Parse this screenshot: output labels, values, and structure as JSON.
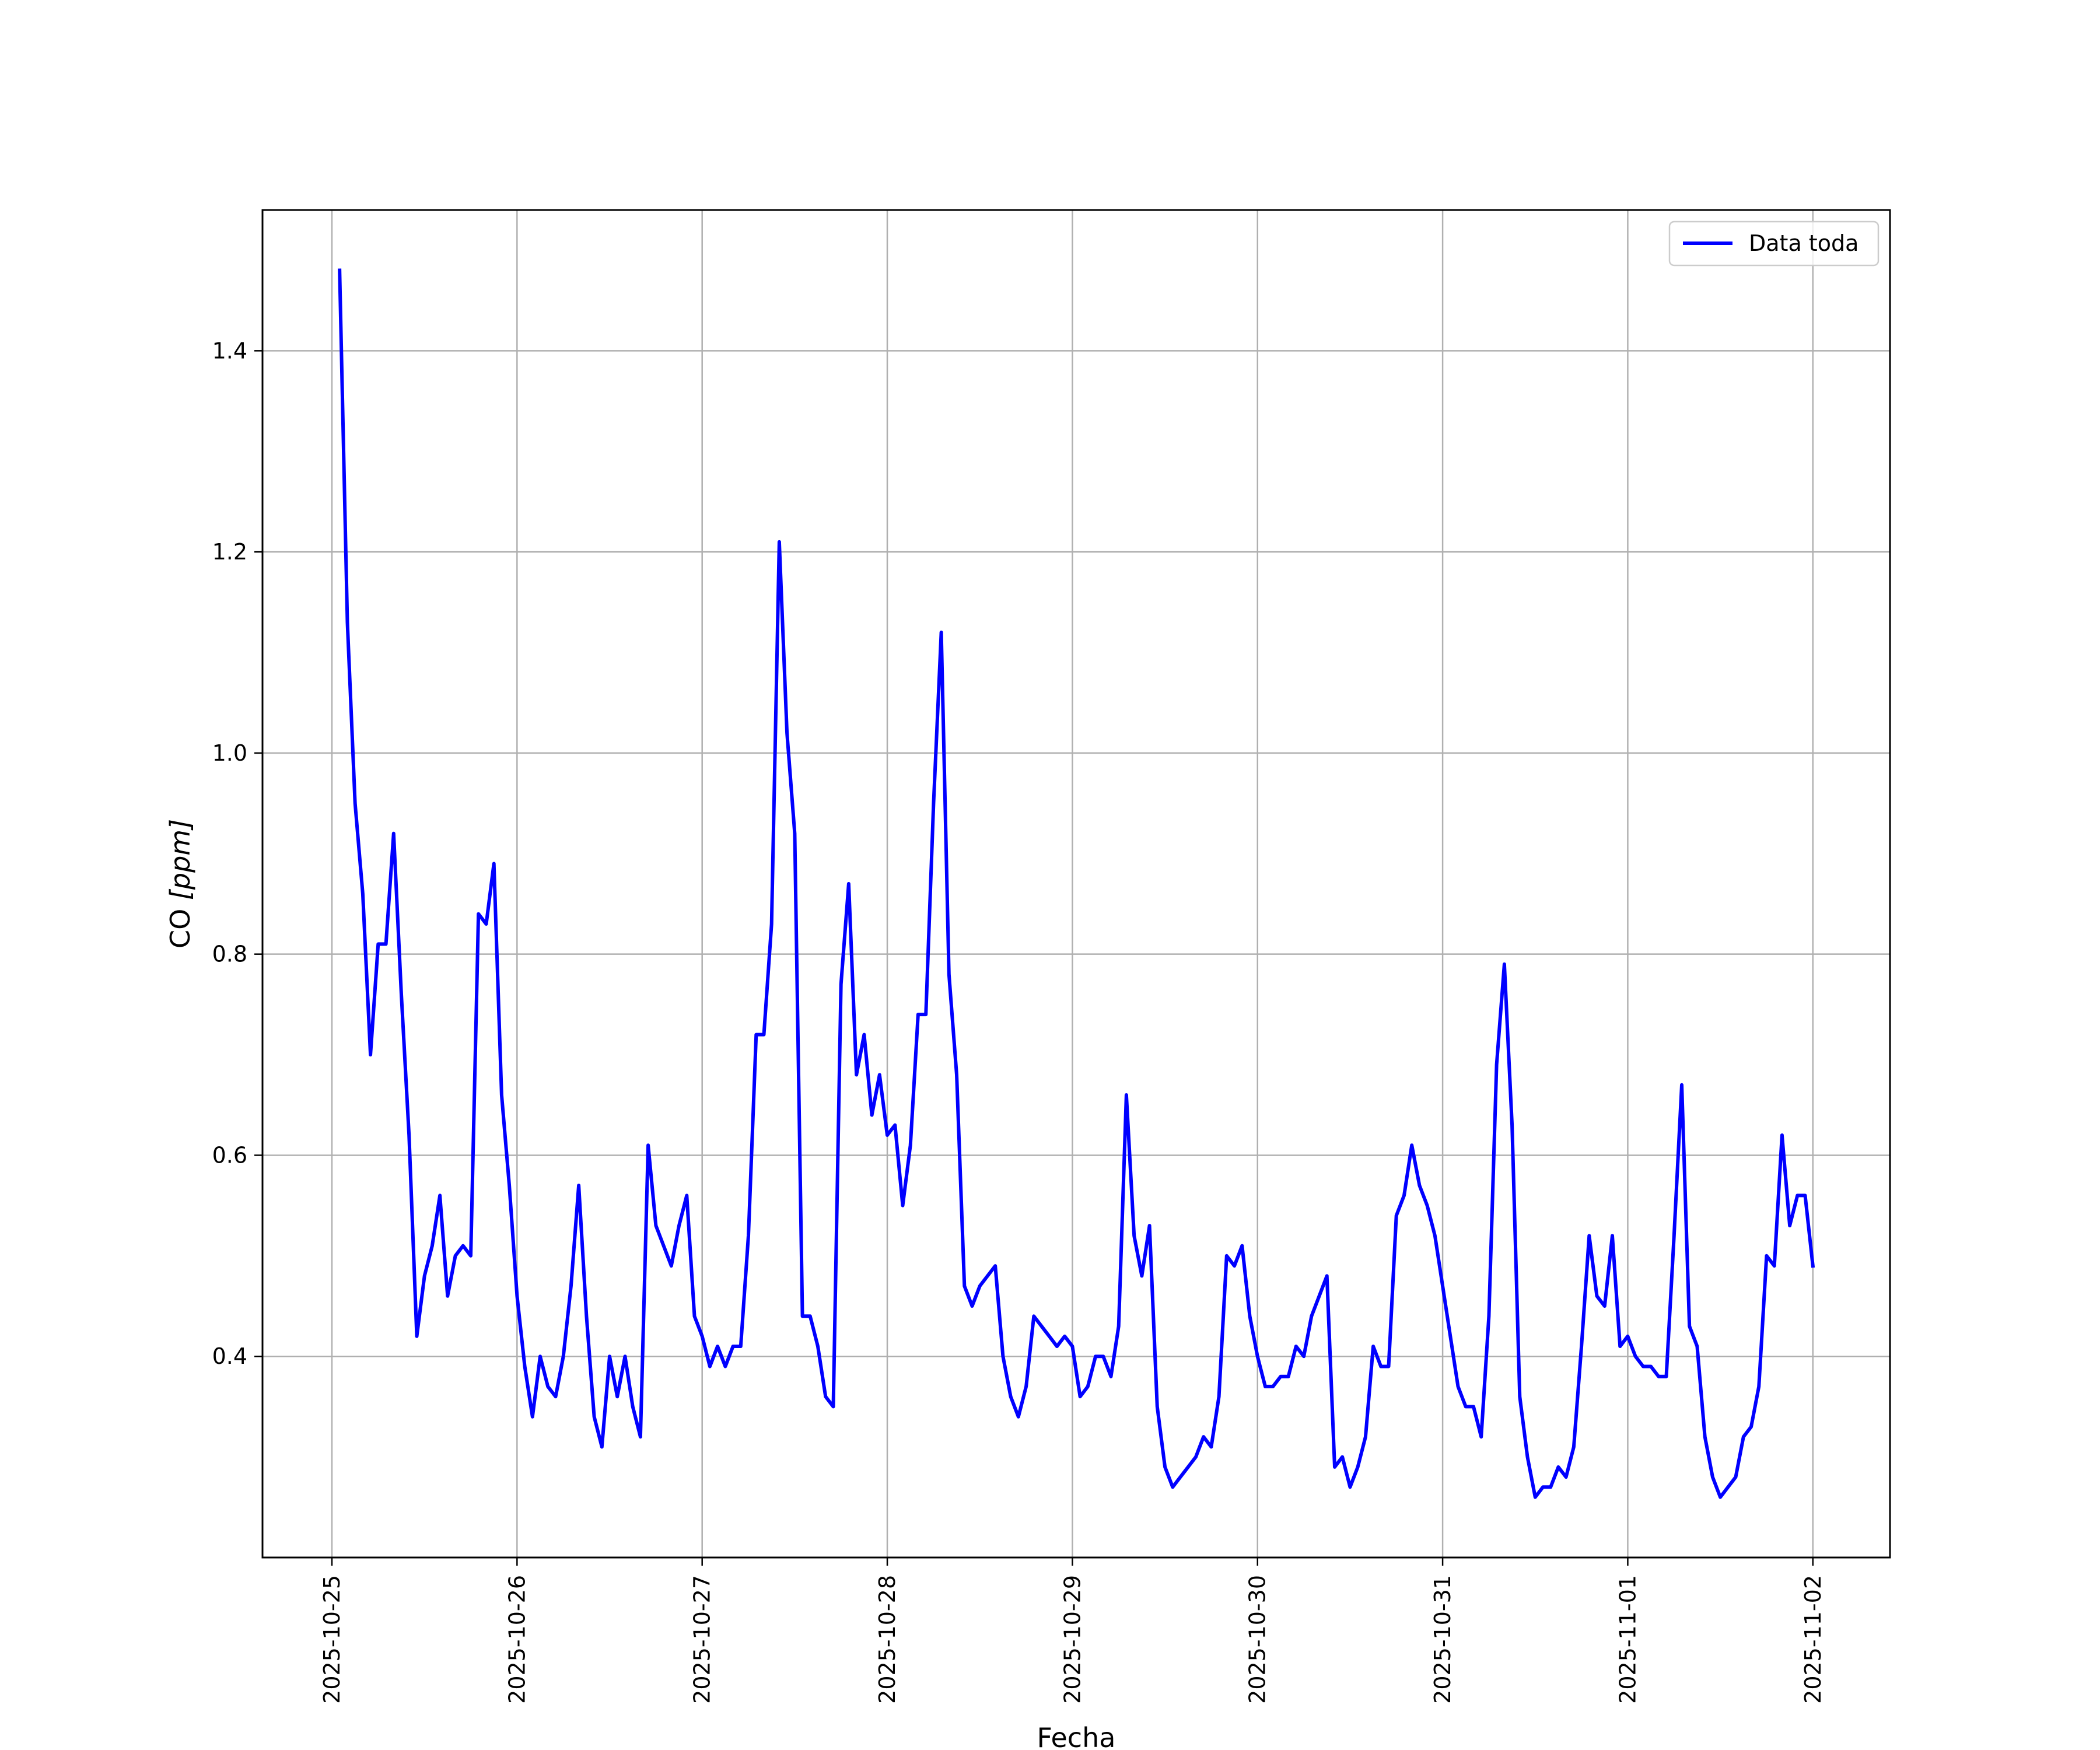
{
  "chart_data": {
    "type": "line",
    "xlabel": "Fecha",
    "ylabel_prefix": "CO ",
    "ylabel_unit": "[ppm]",
    "x_range": [
      "2025-10-24T15:00",
      "2025-11-02T10:00"
    ],
    "ylim": [
      0.2,
      1.54
    ],
    "grid": true,
    "legend_position": "top-right",
    "x_ticks": [
      "2025-10-25",
      "2025-10-26",
      "2025-10-27",
      "2025-10-28",
      "2025-10-29",
      "2025-10-30",
      "2025-10-31",
      "2025-11-01",
      "2025-11-02"
    ],
    "y_ticks": [
      0.4,
      0.6,
      0.8,
      1.0,
      1.2,
      1.4
    ],
    "y_tick_labels": [
      "0.4",
      "0.6",
      "0.8",
      "1.0",
      "1.2",
      "1.4"
    ],
    "series": [
      {
        "name": "Data toda",
        "color": "#0000ff",
        "x": [
          "2025-10-25T01:00",
          "2025-10-25T02:00",
          "2025-10-25T03:00",
          "2025-10-25T04:00",
          "2025-10-25T05:00",
          "2025-10-25T06:00",
          "2025-10-25T07:00",
          "2025-10-25T08:00",
          "2025-10-25T09:00",
          "2025-10-25T10:00",
          "2025-10-25T11:00",
          "2025-10-25T12:00",
          "2025-10-25T13:00",
          "2025-10-25T14:00",
          "2025-10-25T15:00",
          "2025-10-25T16:00",
          "2025-10-25T17:00",
          "2025-10-25T18:00",
          "2025-10-25T19:00",
          "2025-10-25T20:00",
          "2025-10-25T21:00",
          "2025-10-25T22:00",
          "2025-10-25T23:00",
          "2025-10-26T00:00",
          "2025-10-26T01:00",
          "2025-10-26T02:00",
          "2025-10-26T03:00",
          "2025-10-26T04:00",
          "2025-10-26T05:00",
          "2025-10-26T06:00",
          "2025-10-26T07:00",
          "2025-10-26T08:00",
          "2025-10-26T09:00",
          "2025-10-26T10:00",
          "2025-10-26T11:00",
          "2025-10-26T12:00",
          "2025-10-26T13:00",
          "2025-10-26T14:00",
          "2025-10-26T15:00",
          "2025-10-26T16:00",
          "2025-10-26T17:00",
          "2025-10-26T18:00",
          "2025-10-26T19:00",
          "2025-10-26T20:00",
          "2025-10-26T21:00",
          "2025-10-26T22:00",
          "2025-10-26T23:00",
          "2025-10-27T00:00",
          "2025-10-27T01:00",
          "2025-10-27T02:00",
          "2025-10-27T03:00",
          "2025-10-27T04:00",
          "2025-10-27T05:00",
          "2025-10-27T06:00",
          "2025-10-27T07:00",
          "2025-10-27T08:00",
          "2025-10-27T09:00",
          "2025-10-27T10:00",
          "2025-10-27T11:00",
          "2025-10-27T12:00",
          "2025-10-27T13:00",
          "2025-10-27T14:00",
          "2025-10-27T15:00",
          "2025-10-27T16:00",
          "2025-10-27T17:00",
          "2025-10-27T18:00",
          "2025-10-27T19:00",
          "2025-10-27T20:00",
          "2025-10-27T21:00",
          "2025-10-27T22:00",
          "2025-10-27T23:00",
          "2025-10-28T00:00",
          "2025-10-28T01:00",
          "2025-10-28T02:00",
          "2025-10-28T03:00",
          "2025-10-28T04:00",
          "2025-10-28T05:00",
          "2025-10-28T06:00",
          "2025-10-28T07:00",
          "2025-10-28T08:00",
          "2025-10-28T09:00",
          "2025-10-28T10:00",
          "2025-10-28T11:00",
          "2025-10-28T12:00",
          "2025-10-28T13:00",
          "2025-10-28T14:00",
          "2025-10-28T15:00",
          "2025-10-28T16:00",
          "2025-10-28T17:00",
          "2025-10-28T18:00",
          "2025-10-28T19:00",
          "2025-10-28T20:00",
          "2025-10-28T21:00",
          "2025-10-28T22:00",
          "2025-10-28T23:00",
          "2025-10-29T00:00",
          "2025-10-29T01:00",
          "2025-10-29T02:00",
          "2025-10-29T03:00",
          "2025-10-29T04:00",
          "2025-10-29T05:00",
          "2025-10-29T06:00",
          "2025-10-29T07:00",
          "2025-10-29T08:00",
          "2025-10-29T09:00",
          "2025-10-29T10:00",
          "2025-10-29T11:00",
          "2025-10-29T12:00",
          "2025-10-29T13:00",
          "2025-10-29T14:00",
          "2025-10-29T15:00",
          "2025-10-29T16:00",
          "2025-10-29T17:00",
          "2025-10-29T18:00",
          "2025-10-29T19:00",
          "2025-10-29T20:00",
          "2025-10-29T21:00",
          "2025-10-29T22:00",
          "2025-10-29T23:00",
          "2025-10-30T00:00",
          "2025-10-30T01:00",
          "2025-10-30T02:00",
          "2025-10-30T03:00",
          "2025-10-30T04:00",
          "2025-10-30T05:00",
          "2025-10-30T06:00",
          "2025-10-30T07:00",
          "2025-10-30T08:00",
          "2025-10-30T09:00",
          "2025-10-30T10:00",
          "2025-10-30T11:00",
          "2025-10-30T12:00",
          "2025-10-30T13:00",
          "2025-10-30T14:00",
          "2025-10-30T15:00",
          "2025-10-30T16:00",
          "2025-10-30T17:00",
          "2025-10-30T18:00",
          "2025-10-30T19:00",
          "2025-10-30T20:00",
          "2025-10-30T21:00",
          "2025-10-30T22:00",
          "2025-10-30T23:00",
          "2025-10-31T00:00",
          "2025-10-31T01:00",
          "2025-10-31T02:00",
          "2025-10-31T03:00",
          "2025-10-31T04:00",
          "2025-10-31T05:00",
          "2025-10-31T06:00",
          "2025-10-31T07:00",
          "2025-10-31T08:00",
          "2025-10-31T09:00",
          "2025-10-31T10:00",
          "2025-10-31T11:00",
          "2025-10-31T12:00",
          "2025-10-31T13:00",
          "2025-10-31T14:00",
          "2025-10-31T15:00",
          "2025-10-31T16:00",
          "2025-10-31T17:00",
          "2025-10-31T18:00",
          "2025-10-31T19:00",
          "2025-10-31T20:00",
          "2025-10-31T21:00",
          "2025-10-31T22:00",
          "2025-10-31T23:00",
          "2025-11-01T00:00",
          "2025-11-01T01:00",
          "2025-11-01T02:00",
          "2025-11-01T03:00",
          "2025-11-01T04:00",
          "2025-11-01T05:00",
          "2025-11-01T06:00",
          "2025-11-01T07:00",
          "2025-11-01T08:00",
          "2025-11-01T09:00",
          "2025-11-01T10:00",
          "2025-11-01T11:00",
          "2025-11-01T12:00",
          "2025-11-01T13:00",
          "2025-11-01T14:00",
          "2025-11-01T15:00",
          "2025-11-01T16:00",
          "2025-11-01T17:00",
          "2025-11-01T18:00",
          "2025-11-01T19:00",
          "2025-11-01T20:00",
          "2025-11-01T21:00",
          "2025-11-01T22:00",
          "2025-11-01T23:00",
          "2025-11-02T00:00"
        ],
        "values": [
          1.48,
          1.13,
          0.95,
          0.86,
          0.7,
          0.81,
          0.81,
          0.92,
          0.76,
          0.62,
          0.42,
          0.48,
          0.51,
          0.56,
          0.46,
          0.5,
          0.51,
          0.5,
          0.84,
          0.83,
          0.89,
          0.66,
          0.57,
          0.46,
          0.39,
          0.34,
          0.4,
          0.37,
          0.36,
          0.4,
          0.47,
          0.57,
          0.44,
          0.34,
          0.31,
          0.4,
          0.36,
          0.4,
          0.35,
          0.32,
          0.61,
          0.53,
          0.51,
          0.49,
          0.53,
          0.56,
          0.44,
          0.42,
          0.39,
          0.41,
          0.39,
          0.41,
          0.41,
          0.52,
          0.72,
          0.72,
          0.83,
          1.21,
          1.02,
          0.92,
          0.44,
          0.44,
          0.41,
          0.36,
          0.35,
          0.77,
          0.87,
          0.68,
          0.72,
          0.64,
          0.68,
          0.62,
          0.63,
          0.55,
          0.61,
          0.74,
          0.74,
          0.95,
          1.12,
          0.78,
          0.68,
          0.47,
          0.45,
          0.47,
          0.48,
          0.49,
          0.4,
          0.36,
          0.34,
          0.37,
          0.44,
          0.43,
          0.42,
          0.41,
          0.42,
          0.41,
          0.36,
          0.37,
          0.4,
          0.4,
          0.38,
          0.43,
          0.66,
          0.52,
          0.48,
          0.53,
          0.35,
          0.29,
          0.27,
          0.28,
          0.29,
          0.3,
          0.32,
          0.31,
          0.36,
          0.5,
          0.49,
          0.51,
          0.44,
          0.4,
          0.37,
          0.37,
          0.38,
          0.38,
          0.41,
          0.4,
          0.44,
          0.46,
          0.48,
          0.29,
          0.3,
          0.27,
          0.29,
          0.32,
          0.41,
          0.39,
          0.39,
          0.54,
          0.56,
          0.61,
          0.57,
          0.55,
          0.52,
          0.47,
          0.42,
          0.37,
          0.35,
          0.35,
          0.32,
          0.44,
          0.69,
          0.79,
          0.63,
          0.36,
          0.3,
          0.26,
          0.27,
          0.27,
          0.29,
          0.28,
          0.31,
          0.41,
          0.52,
          0.46,
          0.45,
          0.52,
          0.41,
          0.42,
          0.4,
          0.39,
          0.39,
          0.38,
          0.38,
          0.52,
          0.67,
          0.43,
          0.41,
          0.32,
          0.28,
          0.26,
          0.27,
          0.28,
          0.32,
          0.33,
          0.37,
          0.5,
          0.49,
          0.62,
          0.53,
          0.56,
          0.56,
          0.49
        ]
      }
    ]
  }
}
